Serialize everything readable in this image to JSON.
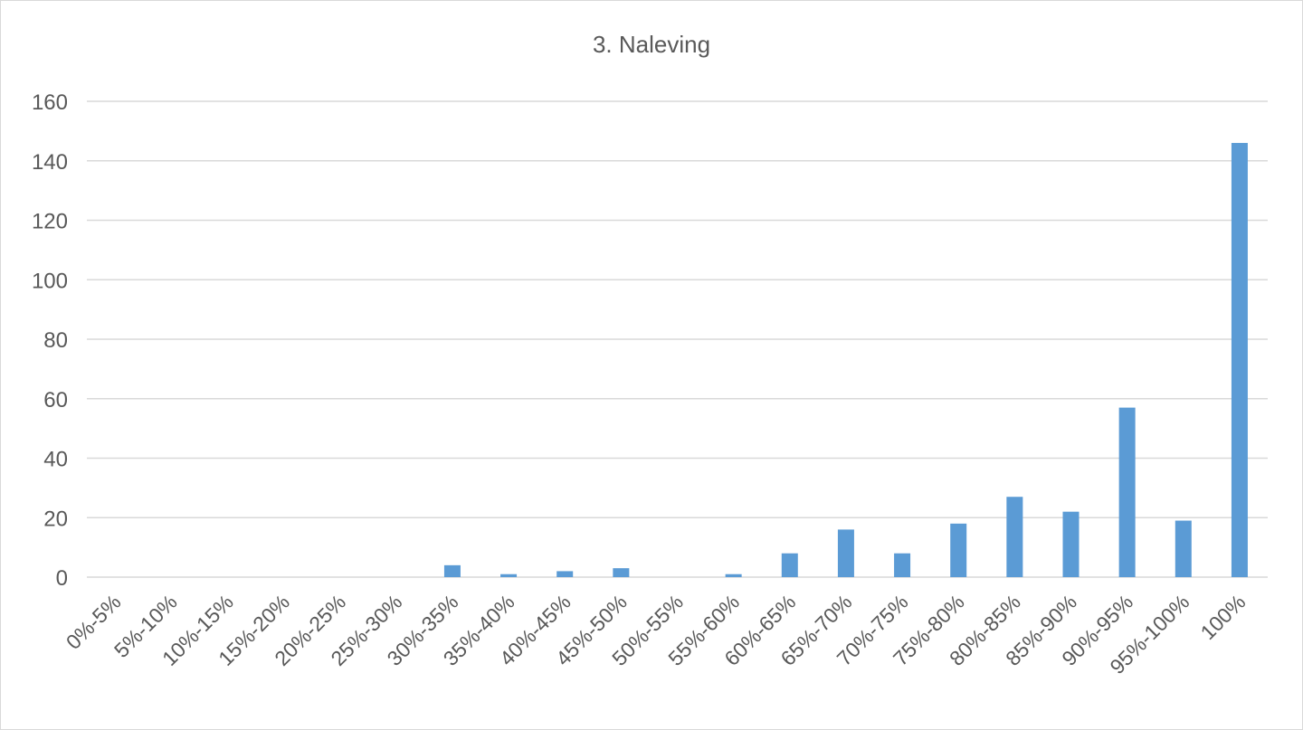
{
  "chart_data": {
    "type": "bar",
    "title": "3. Naleving",
    "xlabel": "",
    "ylabel": "",
    "categories": [
      "0%-5%",
      "5%-10%",
      "10%-15%",
      "15%-20%",
      "20%-25%",
      "25%-30%",
      "30%-35%",
      "35%-40%",
      "40%-45%",
      "45%-50%",
      "50%-55%",
      "55%-60%",
      "60%-65%",
      "65%-70%",
      "70%-75%",
      "75%-80%",
      "80%-85%",
      "85%-90%",
      "90%-95%",
      "95%-100%",
      "100%"
    ],
    "values": [
      0,
      0,
      0,
      0,
      0,
      0,
      4,
      1,
      2,
      3,
      0,
      1,
      8,
      16,
      8,
      18,
      27,
      22,
      57,
      19,
      146
    ],
    "ylim": [
      0,
      160
    ],
    "yticks": [
      0,
      20,
      40,
      60,
      80,
      100,
      120,
      140,
      160
    ],
    "grid": true,
    "legend": "none",
    "bar_color": "#5b9bd5",
    "grid_color": "#d9d9d9"
  }
}
